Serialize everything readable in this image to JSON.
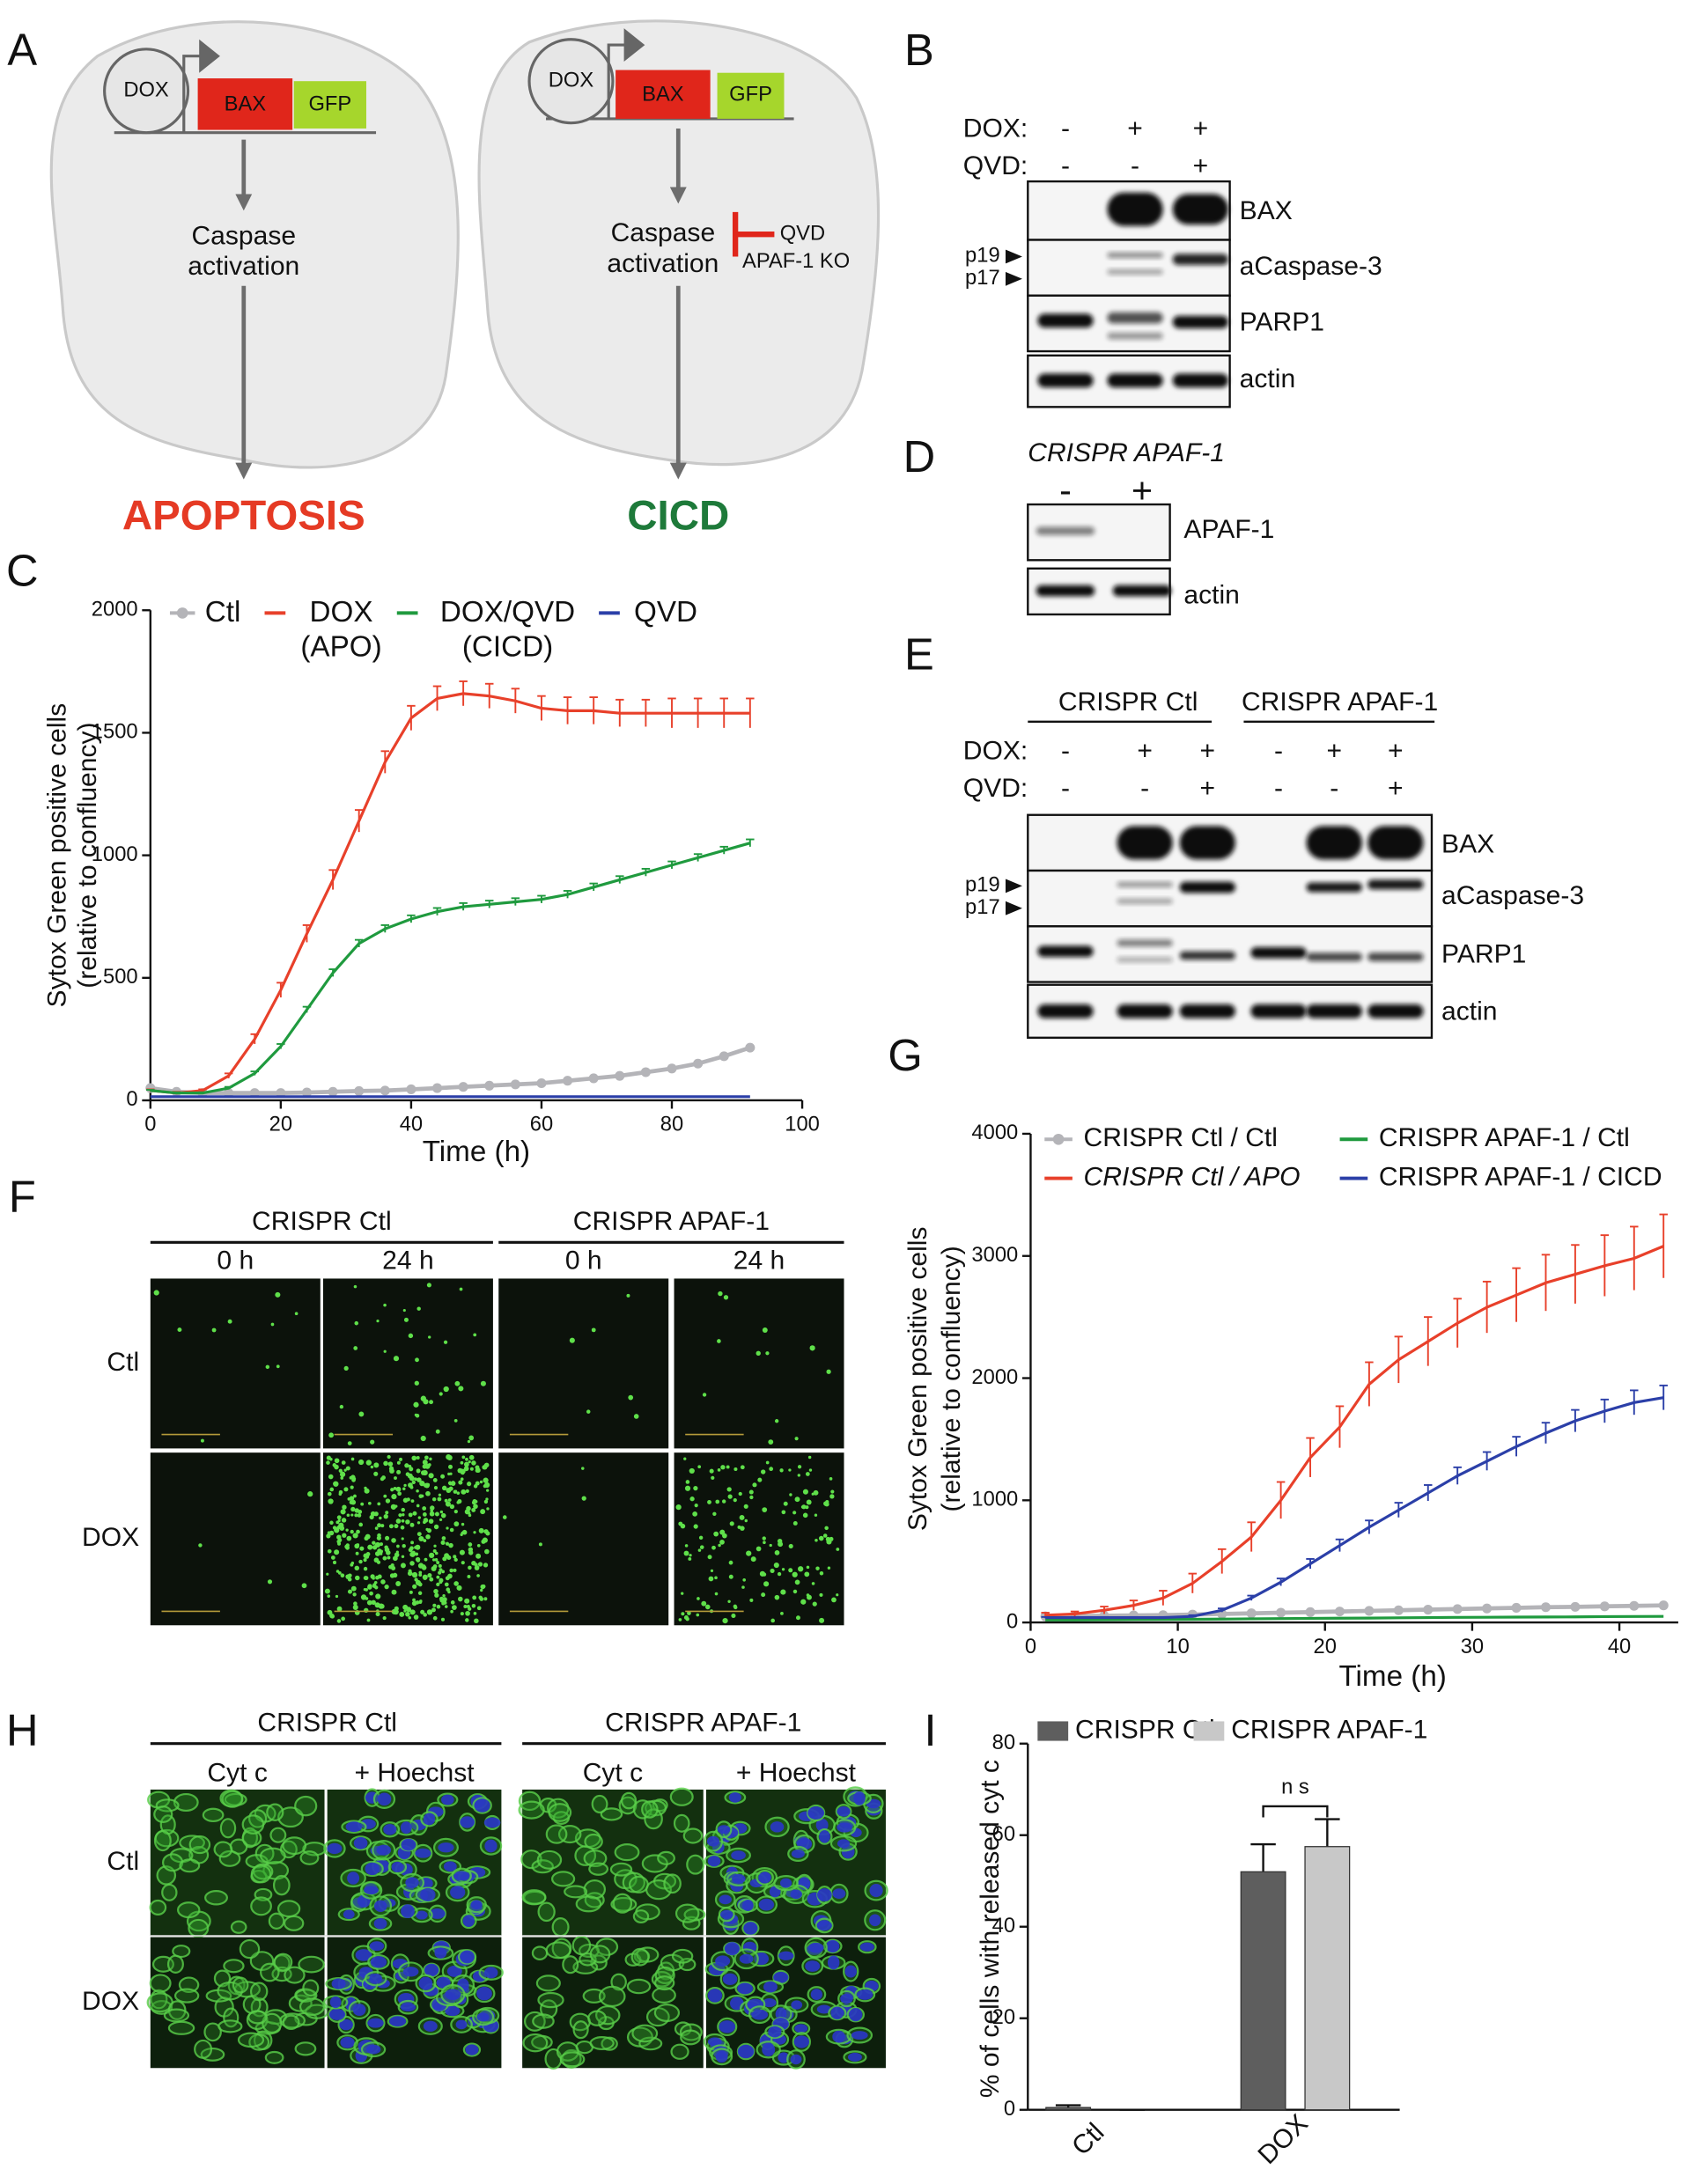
{
  "panel_letters": [
    "A",
    "B",
    "C",
    "D",
    "E",
    "F",
    "G",
    "H",
    "I"
  ],
  "panel_a": {
    "left": {
      "promoter": "DOX",
      "gene": "BAX",
      "tag": "GFP",
      "step": [
        "Caspase",
        "activation"
      ],
      "outcome": "APOPTOSIS"
    },
    "right": {
      "promoter": "DOX",
      "gene": "BAX",
      "tag": "GFP",
      "step": [
        "Caspase",
        "activation"
      ],
      "inhibitors": [
        "QVD",
        "APAF-1 KO"
      ],
      "outcome": "CICD"
    }
  },
  "panel_b": {
    "treatments": [
      {
        "label": "DOX:",
        "lanes": [
          "-",
          "+",
          "+"
        ]
      },
      {
        "label": "QVD:",
        "lanes": [
          "-",
          "-",
          "+"
        ]
      }
    ],
    "blots": [
      "BAX",
      "aCaspase-3",
      "PARP1",
      "actin"
    ],
    "markers": [
      "p19",
      "p17"
    ]
  },
  "panel_d": {
    "header": "CRISPR APAF-1",
    "lanes": [
      "-",
      "+"
    ],
    "blots": [
      "APAF-1",
      "actin"
    ]
  },
  "panel_e": {
    "groups": [
      "CRISPR Ctl",
      "CRISPR APAF-1"
    ],
    "treatments": [
      {
        "label": "DOX:",
        "lanes": [
          "-",
          "+",
          "+",
          "-",
          "+",
          "+"
        ]
      },
      {
        "label": "QVD:",
        "lanes": [
          "-",
          "-",
          "+",
          "-",
          "-",
          "+"
        ]
      }
    ],
    "blots": [
      "BAX",
      "aCaspase-3",
      "PARP1",
      "actin"
    ],
    "markers": [
      "p19",
      "p17"
    ]
  },
  "panel_f": {
    "groups": [
      "CRISPR Ctl",
      "CRISPR APAF-1"
    ],
    "times": [
      "0 h",
      "24 h",
      "0 h",
      "24 h"
    ],
    "rows": [
      "Ctl",
      "DOX"
    ]
  },
  "panel_h": {
    "groups": [
      "CRISPR Ctl",
      "CRISPR APAF-1"
    ],
    "stains": [
      "Cyt c",
      "+ Hoechst",
      "Cyt c",
      "+ Hoechst"
    ],
    "rows": [
      "Ctl",
      "DOX"
    ]
  },
  "chart_data": [
    {
      "type": "line",
      "xlabel": "Time (h)",
      "ylabel": [
        "Sytox Green positive cells",
        "(relative to confluency)"
      ],
      "xlim": [
        0,
        100
      ],
      "xticks": [
        0,
        20,
        40,
        60,
        80,
        100
      ],
      "ylim": [
        0,
        2000
      ],
      "yticks": [
        0,
        500,
        1000,
        1500,
        2000
      ],
      "x": [
        0,
        4,
        8,
        12,
        16,
        20,
        24,
        28,
        32,
        36,
        40,
        44,
        48,
        52,
        56,
        60,
        64,
        68,
        72,
        76,
        80,
        84,
        88,
        92
      ],
      "series": [
        {
          "name": "Ctl",
          "color": "#b4b4b8",
          "marker": "circle",
          "values": [
            50,
            35,
            30,
            30,
            30,
            30,
            32,
            35,
            38,
            40,
            45,
            50,
            55,
            60,
            65,
            70,
            80,
            90,
            100,
            115,
            130,
            150,
            180,
            215
          ]
        },
        {
          "name": "DOX (APO)",
          "color": "#e8402a",
          "values": [
            40,
            30,
            40,
            100,
            250,
            450,
            680,
            900,
            1140,
            1380,
            1560,
            1640,
            1660,
            1650,
            1630,
            1600,
            1590,
            1590,
            1580,
            1580,
            1580,
            1580,
            1580,
            1580
          ],
          "errors": [
            5,
            5,
            5,
            10,
            20,
            30,
            35,
            40,
            45,
            45,
            50,
            50,
            50,
            50,
            50,
            50,
            55,
            55,
            55,
            55,
            60,
            60,
            60,
            60
          ]
        },
        {
          "name": "DOX/QVD (CICD)",
          "color": "#1f9a3e",
          "values": [
            40,
            30,
            30,
            50,
            110,
            220,
            370,
            520,
            640,
            700,
            740,
            770,
            790,
            800,
            810,
            820,
            840,
            870,
            900,
            930,
            960,
            990,
            1020,
            1050
          ],
          "errors": [
            3,
            3,
            3,
            5,
            8,
            10,
            12,
            15,
            15,
            15,
            15,
            15,
            15,
            15,
            15,
            15,
            15,
            15,
            15,
            15,
            15,
            15,
            15,
            15
          ]
        },
        {
          "name": "QVD",
          "color": "#2b3fa8",
          "values": [
            15,
            15,
            15,
            15,
            15,
            15,
            15,
            15,
            15,
            15,
            15,
            15,
            15,
            15,
            15,
            15,
            15,
            15,
            15,
            15,
            15,
            15,
            15,
            15
          ]
        }
      ]
    },
    {
      "type": "line",
      "xlabel": "Time (h)",
      "ylabel": [
        "Sytox Green positive cells",
        "(relative to confluency)"
      ],
      "xlim": [
        0,
        44
      ],
      "xticks": [
        0,
        10,
        20,
        30,
        40
      ],
      "ylim": [
        0,
        4000
      ],
      "yticks": [
        0,
        1000,
        2000,
        3000,
        4000
      ],
      "x": [
        1,
        3,
        5,
        7,
        9,
        11,
        13,
        15,
        17,
        19,
        21,
        23,
        25,
        27,
        29,
        31,
        33,
        35,
        37,
        39,
        41,
        43
      ],
      "series": [
        {
          "name": "CRISPR Ctl / Ctl",
          "color": "#b4b4b8",
          "marker": "circle",
          "values": [
            50,
            52,
            55,
            58,
            60,
            65,
            70,
            75,
            80,
            85,
            90,
            95,
            100,
            105,
            110,
            115,
            120,
            125,
            128,
            132,
            136,
            140
          ]
        },
        {
          "name": "CRISPR Ctl / APO",
          "color": "#e8402a",
          "italic": true,
          "values": [
            60,
            70,
            100,
            140,
            200,
            320,
            500,
            700,
            1000,
            1350,
            1600,
            1950,
            2150,
            2300,
            2450,
            2580,
            2680,
            2780,
            2850,
            2920,
            2980,
            3080
          ],
          "errors": [
            20,
            20,
            30,
            40,
            60,
            80,
            100,
            120,
            150,
            160,
            170,
            180,
            190,
            200,
            200,
            210,
            220,
            230,
            240,
            250,
            260,
            260
          ]
        },
        {
          "name": "CRISPR APAF-1 / Ctl",
          "color": "#1f9a3e",
          "values": [
            20,
            20,
            22,
            24,
            25,
            26,
            28,
            30,
            32,
            34,
            35,
            36,
            38,
            40,
            42,
            43,
            44,
            45,
            46,
            48,
            49,
            50
          ]
        },
        {
          "name": "CRISPR APAF-1 / CICD",
          "color": "#2b3fa8",
          "values": [
            40,
            40,
            40,
            40,
            40,
            50,
            100,
            200,
            330,
            480,
            630,
            780,
            920,
            1060,
            1200,
            1320,
            1440,
            1550,
            1650,
            1730,
            1800,
            1840
          ],
          "errors": [
            5,
            5,
            5,
            5,
            5,
            10,
            15,
            20,
            30,
            40,
            50,
            55,
            60,
            65,
            70,
            75,
            80,
            85,
            90,
            95,
            100,
            100
          ]
        }
      ]
    },
    {
      "type": "bar",
      "ylabel": "% of cells with released cyt c",
      "categories": [
        "Ctl",
        "DOX"
      ],
      "ylim": [
        0,
        80
      ],
      "yticks": [
        0,
        20,
        40,
        60,
        80
      ],
      "annotation": "n s",
      "series": [
        {
          "name": "CRISPR Ctl",
          "color": "#5e5e5e",
          "values": [
            0.5,
            52
          ],
          "errors": [
            0.5,
            6
          ]
        },
        {
          "name": "CRISPR APAF-1",
          "color": "#c8c8c8",
          "values": [
            0,
            57.5
          ],
          "errors": [
            0,
            6
          ]
        }
      ]
    }
  ]
}
